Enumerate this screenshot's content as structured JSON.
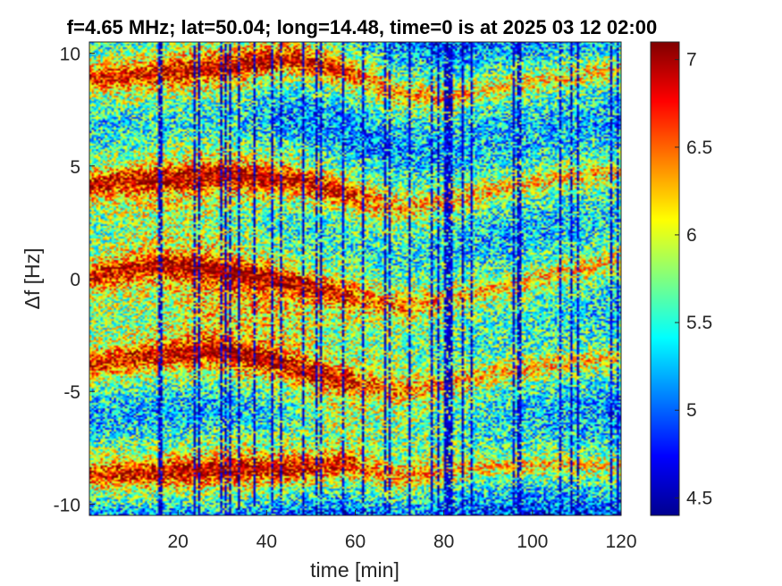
{
  "chart_data": {
    "type": "heatmap",
    "title": "f=4.65 MHz;  lat=50.04; long=14.48, time=0 is at 2025 03 12 02:00",
    "xlabel": "time [min]",
    "ylabel": "Δf [Hz]",
    "xlim": [
      0,
      120
    ],
    "ylim": [
      -10.5,
      10.5
    ],
    "xticks": [
      20,
      40,
      60,
      80,
      100,
      120
    ],
    "xtick_labels": [
      "20",
      "40",
      "60",
      "80",
      "100",
      "120"
    ],
    "yticks": [
      10,
      5,
      0,
      -5,
      -10
    ],
    "ytick_labels": [
      "10",
      "5",
      "0",
      "-5",
      "-10"
    ],
    "colorbar": {
      "limits": [
        4.4,
        7.1
      ],
      "ticks": [
        7,
        6.5,
        6,
        5.5,
        5,
        4.5
      ],
      "tick_labels": [
        "7",
        "6.5",
        "6",
        "5.5",
        "5",
        "4.5"
      ],
      "colormap": "jet"
    },
    "bands": [
      {
        "name": "",
        "points": [
          [
            0,
            8.9
          ],
          [
            15,
            9.1
          ],
          [
            30,
            9.4
          ],
          [
            45,
            9.8
          ],
          [
            58,
            9.2
          ],
          [
            70,
            8.2
          ],
          [
            80,
            8.0
          ],
          [
            95,
            8.6
          ],
          [
            110,
            9.0
          ],
          [
            120,
            9.3
          ]
        ]
      },
      {
        "name": "",
        "points": [
          [
            0,
            4.2
          ],
          [
            15,
            4.4
          ],
          [
            30,
            4.6
          ],
          [
            45,
            4.4
          ],
          [
            58,
            3.8
          ],
          [
            70,
            3.1
          ],
          [
            80,
            3.4
          ],
          [
            95,
            4.1
          ],
          [
            110,
            4.6
          ],
          [
            120,
            4.8
          ]
        ]
      },
      {
        "name": "",
        "points": [
          [
            0,
            0.1
          ],
          [
            15,
            0.6
          ],
          [
            28,
            0.4
          ],
          [
            40,
            0.0
          ],
          [
            55,
            -0.6
          ],
          [
            70,
            -1.2
          ],
          [
            80,
            -0.9
          ],
          [
            95,
            -0.3
          ],
          [
            110,
            0.4
          ],
          [
            120,
            0.8
          ]
        ]
      },
      {
        "name": "",
        "points": [
          [
            0,
            -3.8
          ],
          [
            15,
            -3.4
          ],
          [
            28,
            -3.2
          ],
          [
            40,
            -3.6
          ],
          [
            55,
            -4.4
          ],
          [
            70,
            -5.0
          ],
          [
            80,
            -4.7
          ],
          [
            95,
            -4.1
          ],
          [
            110,
            -3.7
          ],
          [
            120,
            -3.5
          ]
        ]
      },
      {
        "name": "",
        "points": [
          [
            0,
            -8.7
          ],
          [
            15,
            -8.6
          ],
          [
            30,
            -8.5
          ],
          [
            45,
            -8.4
          ],
          [
            58,
            -8.2
          ],
          [
            70,
            -8.8
          ],
          [
            80,
            -8.5
          ],
          [
            95,
            -8.3
          ],
          [
            110,
            -8.3
          ],
          [
            120,
            -8.4
          ]
        ]
      }
    ],
    "grid": false,
    "legend": "none"
  }
}
